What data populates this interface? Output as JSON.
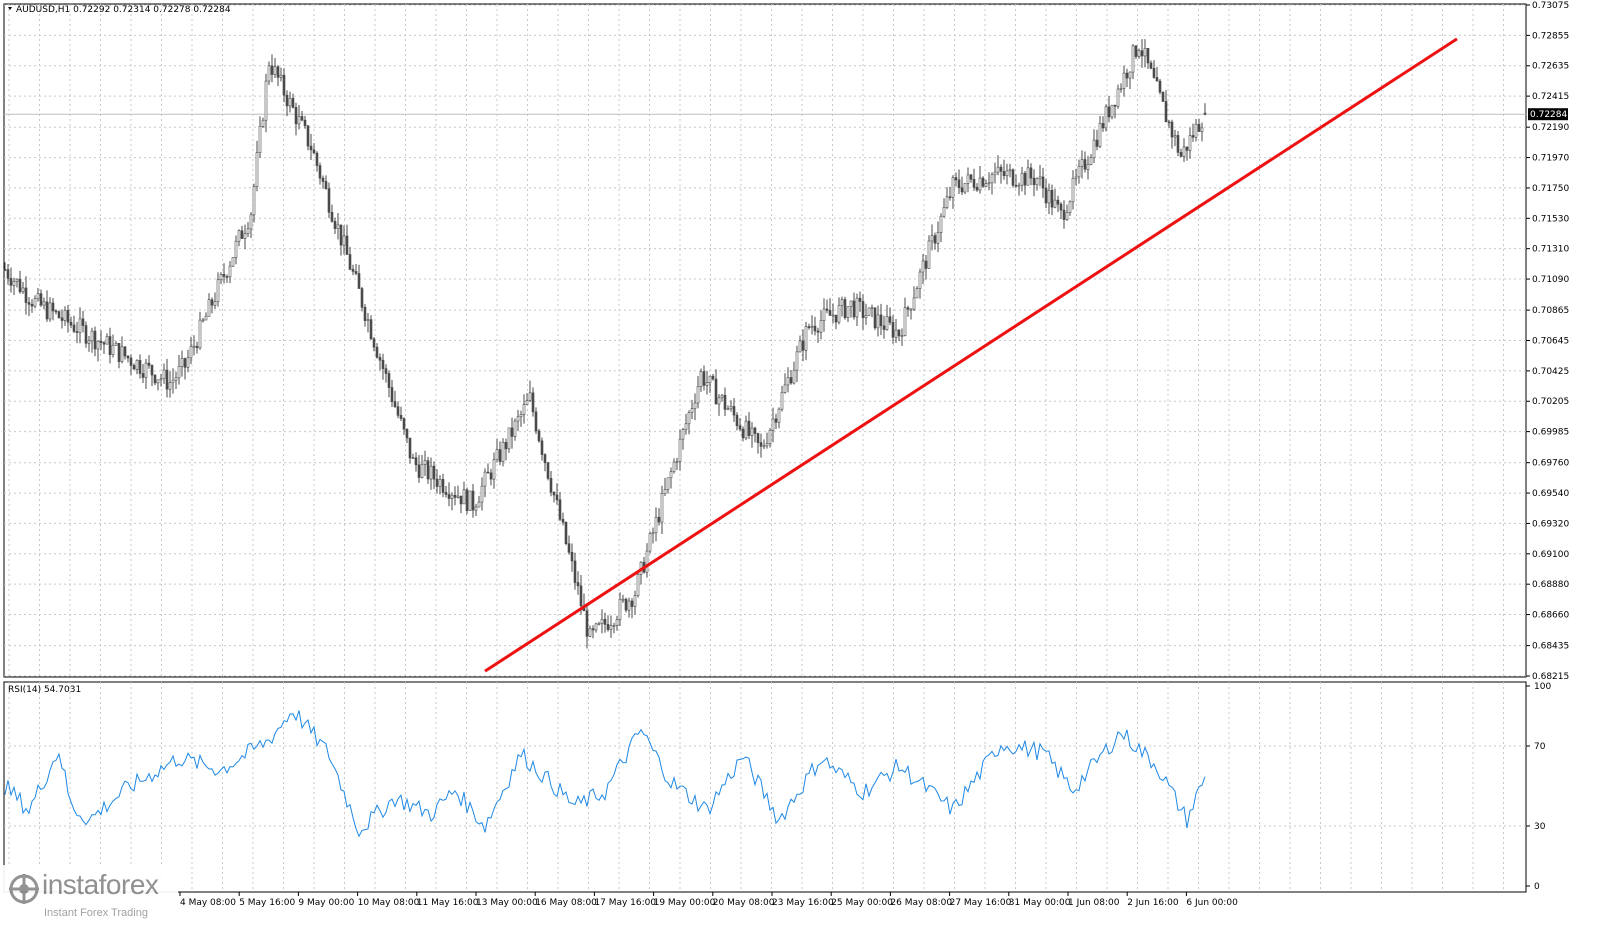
{
  "window": {
    "symbol_header": "AUDUSD,H1  0.72292 0.72314 0.72278 0.72284",
    "current_price_label": "0.72284",
    "rsi_header": "RSI(14) 54.7031"
  },
  "watermark": {
    "brand": "instaforex",
    "tagline": "Instant Forex Trading"
  },
  "colors": {
    "candles": "#4a4a4a",
    "trendline": "#ee1111",
    "rsi_line": "#1e88e5",
    "grid": "#c8c8c8",
    "current_price_line": "#bdbdbd"
  },
  "chart_data": [
    {
      "type": "candlestick",
      "title": "AUDUSD,H1",
      "ohlc_last": {
        "open": 0.72292,
        "high": 0.72314,
        "low": 0.72278,
        "close": 0.72284
      },
      "ylim": [
        0.68215,
        0.73075
      ],
      "y_ticks": [
        "0.73075",
        "0.72855",
        "0.72635",
        "0.72415",
        "0.72190",
        "0.71970",
        "0.71750",
        "0.71530",
        "0.71310",
        "0.71090",
        "0.70865",
        "0.70645",
        "0.70425",
        "0.70205",
        "0.69985",
        "0.69760",
        "0.69540",
        "0.69320",
        "0.69100",
        "0.68880",
        "0.68660",
        "0.68435",
        "0.68215"
      ],
      "x_ticks": [
        "4 May 08:00",
        "5 May 16:00",
        "9 May 00:00",
        "10 May 08:00",
        "11 May 16:00",
        "13 May 00:00",
        "16 May 08:00",
        "17 May 16:00",
        "19 May 00:00",
        "20 May 08:00",
        "23 May 16:00",
        "25 May 00:00",
        "26 May 08:00",
        "27 May 16:00",
        "31 May 00:00",
        "1 Jun 08:00",
        "2 Jun 16:00",
        "6 Jun 00:00"
      ],
      "grid": true,
      "approx_path": {
        "hour_index": [
          0,
          10,
          55,
          60,
          82,
          88,
          102,
          120,
          136,
          156,
          175,
          195,
          210,
          232,
          252,
          268,
          282,
          298,
          316,
          330,
          344,
          352,
          378,
          392,
          400
        ],
        "price": [
          0.7116,
          0.7092,
          0.7034,
          0.7046,
          0.7158,
          0.7267,
          0.7205,
          0.7086,
          0.6976,
          0.6946,
          0.7022,
          0.6848,
          0.6882,
          0.704,
          0.6985,
          0.7075,
          0.709,
          0.707,
          0.7176,
          0.7185,
          0.7182,
          0.7155,
          0.728,
          0.7198,
          0.723
        ]
      },
      "trendline": {
        "start": {
          "hour_index": 160,
          "price": 0.6825
        },
        "end": {
          "hour_index": 484,
          "price": 0.7283
        }
      }
    },
    {
      "type": "line",
      "title": "RSI(14)",
      "last_value": 54.7031,
      "ylim": [
        0,
        100
      ],
      "y_ticks": [
        "100",
        "70",
        "30",
        "0"
      ],
      "approx_series": {
        "hour_index": [
          0,
          8,
          18,
          22,
          28,
          40,
          58,
          72,
          88,
          96,
          102,
          108,
          118,
          130,
          142,
          150,
          160,
          172,
          190,
          200,
          212,
          222,
          234,
          246,
          258,
          272,
          286,
          298,
          316,
          332,
          346,
          356,
          372,
          384,
          394,
          400
        ],
        "value": [
          50,
          38,
          68,
          40,
          33,
          48,
          64,
          58,
          73,
          88,
          77,
          66,
          28,
          44,
          36,
          48,
          30,
          66,
          40,
          47,
          78,
          52,
          38,
          65,
          33,
          64,
          47,
          60,
          38,
          71,
          67,
          48,
          77,
          60,
          33,
          55
        ]
      }
    }
  ]
}
